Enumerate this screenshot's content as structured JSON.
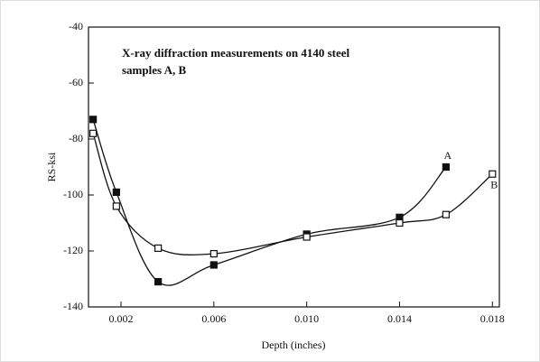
{
  "chart_data": {
    "type": "line",
    "annotations": [
      "X-ray diffraction measurements on 4140 steel",
      "samples A, B"
    ],
    "x_label": "Depth (inches)",
    "y_label": "RS-ksi",
    "xlim": [
      0.0006,
      0.0183
    ],
    "ylim": [
      -140,
      -40
    ],
    "xticks": [
      0.002,
      0.006,
      {
        "value": 0.01,
        "label": "0.010"
      },
      0.014,
      0.018
    ],
    "yticks": [
      -140,
      -120,
      -100,
      -80,
      -60,
      -40
    ],
    "series": [
      {
        "name": "A",
        "color": "#111111",
        "marker": "filled-square",
        "x": [
          0.0008,
          0.0018,
          0.0036,
          0.006,
          0.01,
          0.014,
          0.016
        ],
        "values": [
          -73,
          -99,
          -131,
          -125,
          -114,
          -108,
          -90
        ]
      },
      {
        "name": "B",
        "color": "#111111",
        "marker": "open-square",
        "x": [
          0.0008,
          0.0018,
          0.0036,
          0.006,
          0.01,
          0.014,
          0.016,
          0.018
        ],
        "values": [
          -78,
          -104,
          -119,
          -121,
          -115,
          -110,
          -107,
          -92.5
        ]
      }
    ]
  }
}
